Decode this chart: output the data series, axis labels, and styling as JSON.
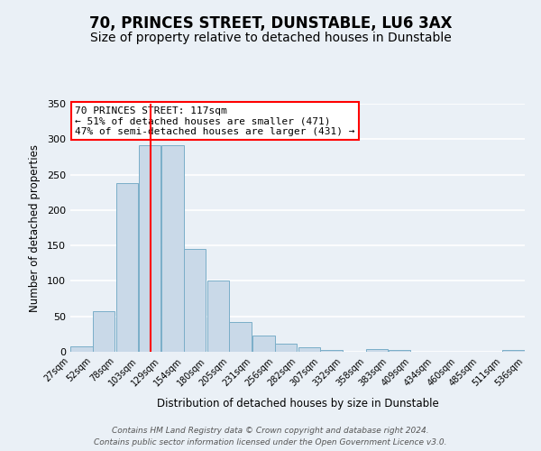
{
  "title": "70, PRINCES STREET, DUNSTABLE, LU6 3AX",
  "subtitle": "Size of property relative to detached houses in Dunstable",
  "xlabel": "Distribution of detached houses by size in Dunstable",
  "ylabel": "Number of detached properties",
  "bar_left_edges": [
    27,
    52,
    78,
    103,
    129,
    154,
    180,
    205,
    231,
    256,
    282,
    307,
    332,
    358,
    383,
    409,
    434,
    460,
    485,
    511
  ],
  "bar_heights": [
    8,
    57,
    238,
    291,
    291,
    145,
    101,
    42,
    23,
    12,
    6,
    3,
    0,
    4,
    3,
    0,
    0,
    0,
    0,
    2
  ],
  "bin_width": 25,
  "bar_color": "#c9d9e8",
  "bar_edge_color": "#7aaec8",
  "vline_x": 117,
  "vline_color": "red",
  "annotation_text": "70 PRINCES STREET: 117sqm\n← 51% of detached houses are smaller (471)\n47% of semi-detached houses are larger (431) →",
  "annotation_box_color": "white",
  "annotation_box_edge_color": "red",
  "ylim": [
    0,
    350
  ],
  "yticks": [
    0,
    50,
    100,
    150,
    200,
    250,
    300,
    350
  ],
  "tick_labels": [
    "27sqm",
    "52sqm",
    "78sqm",
    "103sqm",
    "129sqm",
    "154sqm",
    "180sqm",
    "205sqm",
    "231sqm",
    "256sqm",
    "282sqm",
    "307sqm",
    "332sqm",
    "358sqm",
    "383sqm",
    "409sqm",
    "434sqm",
    "460sqm",
    "485sqm",
    "511sqm",
    "536sqm"
  ],
  "footer_line1": "Contains HM Land Registry data © Crown copyright and database right 2024.",
  "footer_line2": "Contains public sector information licensed under the Open Government Licence v3.0.",
  "background_color": "#eaf0f6",
  "grid_color": "#ffffff",
  "title_fontsize": 12,
  "subtitle_fontsize": 10
}
